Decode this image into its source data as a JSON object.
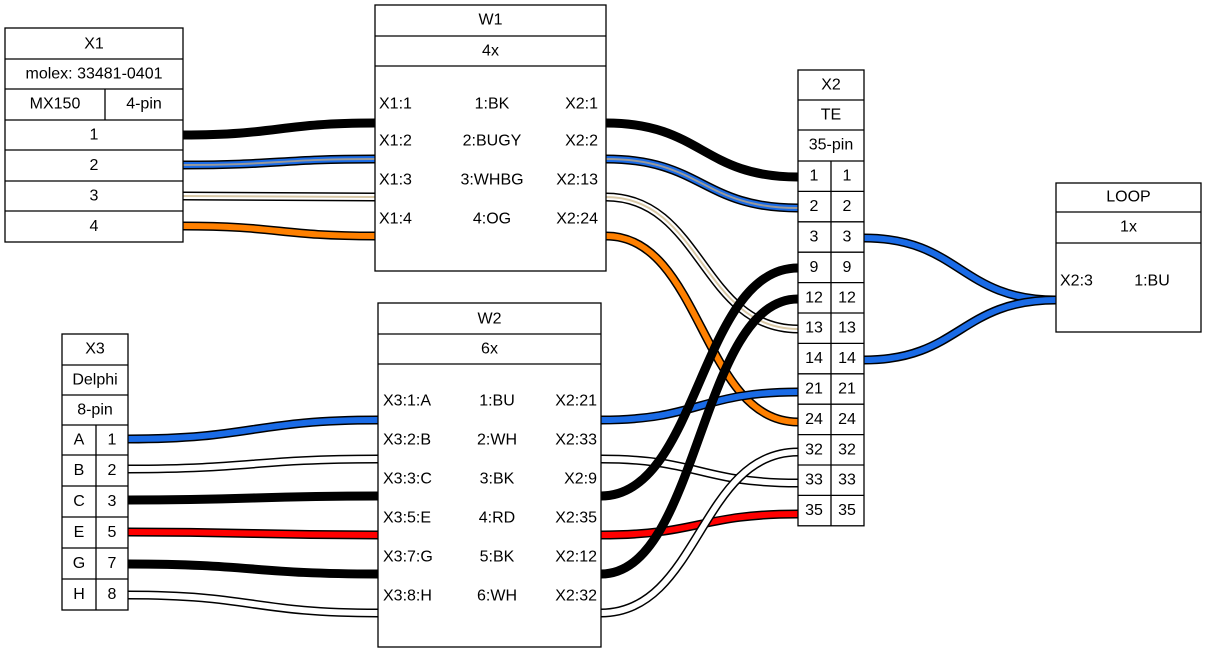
{
  "colors": {
    "BK": "#000000",
    "WH": "#ffffff",
    "BU": "#1a6be6",
    "GY": "#999999",
    "OG": "#ff8000",
    "RD": "#ff0000",
    "BG": "#d9c9a8"
  },
  "connectors": {
    "X1": {
      "name": "X1",
      "info": "molex: 33481-0401",
      "type": "MX150",
      "pincount": "4-pin",
      "pins": [
        "1",
        "2",
        "3",
        "4"
      ]
    },
    "X2": {
      "name": "X2",
      "manufacturer": "TE",
      "pincount": "35-pin",
      "pins": [
        {
          "left": "1",
          "right": "1"
        },
        {
          "left": "2",
          "right": "2"
        },
        {
          "left": "3",
          "right": "3"
        },
        {
          "left": "9",
          "right": "9"
        },
        {
          "left": "12",
          "right": "12"
        },
        {
          "left": "13",
          "right": "13"
        },
        {
          "left": "14",
          "right": "14"
        },
        {
          "left": "21",
          "right": "21"
        },
        {
          "left": "24",
          "right": "24"
        },
        {
          "left": "32",
          "right": "32"
        },
        {
          "left": "33",
          "right": "33"
        },
        {
          "left": "35",
          "right": "35"
        }
      ]
    },
    "X3": {
      "name": "X3",
      "manufacturer": "Delphi",
      "pincount": "8-pin",
      "pins": [
        {
          "label": "A",
          "num": "1"
        },
        {
          "label": "B",
          "num": "2"
        },
        {
          "label": "C",
          "num": "3"
        },
        {
          "label": "E",
          "num": "5"
        },
        {
          "label": "G",
          "num": "7"
        },
        {
          "label": "H",
          "num": "8"
        }
      ]
    }
  },
  "cables": {
    "W1": {
      "name": "W1",
      "count": "4x",
      "wires": [
        {
          "from": "X1:1",
          "wire": "1:BK",
          "to": "X2:1"
        },
        {
          "from": "X1:2",
          "wire": "2:BUGY",
          "to": "X2:2"
        },
        {
          "from": "X1:3",
          "wire": "3:WHBG",
          "to": "X2:13"
        },
        {
          "from": "X1:4",
          "wire": "4:OG",
          "to": "X2:24"
        }
      ]
    },
    "W2": {
      "name": "W2",
      "count": "6x",
      "wires": [
        {
          "from": "X3:1:A",
          "wire": "1:BU",
          "to": "X2:21"
        },
        {
          "from": "X3:2:B",
          "wire": "2:WH",
          "to": "X2:33"
        },
        {
          "from": "X3:3:C",
          "wire": "3:BK",
          "to": "X2:9"
        },
        {
          "from": "X3:5:E",
          "wire": "4:RD",
          "to": "X2:35"
        },
        {
          "from": "X3:7:G",
          "wire": "5:BK",
          "to": "X2:12"
        },
        {
          "from": "X3:8:H",
          "wire": "6:WH",
          "to": "X2:32"
        }
      ]
    },
    "LOOP": {
      "name": "LOOP",
      "count": "1x",
      "wires": [
        {
          "from": "X2:3",
          "wire": "1:BU"
        }
      ]
    }
  }
}
